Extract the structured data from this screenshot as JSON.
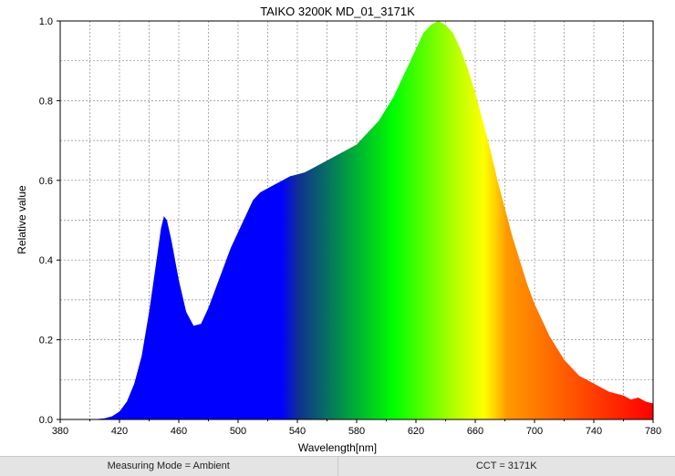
{
  "chart_data": {
    "type": "area",
    "title": "TAIKO 3200K MD_01_3171K",
    "xlabel": "Wavelength[nm]",
    "ylabel": "Relative value",
    "xlim": [
      380,
      780
    ],
    "ylim": [
      0,
      1.0
    ],
    "x_ticks": [
      380,
      420,
      460,
      500,
      540,
      580,
      620,
      660,
      700,
      740,
      780
    ],
    "y_ticks": [
      "0.0",
      "0.2",
      "0.4",
      "0.6",
      "0.8",
      "1.0"
    ],
    "x_minor_step": 20,
    "y_minor_step": 0.1,
    "grid": true,
    "fill": "visible-spectrum-gradient",
    "series": [
      {
        "x": [
          400,
          405,
          410,
          415,
          420,
          425,
          430,
          435,
          440,
          445,
          448,
          450,
          452,
          455,
          460,
          465,
          470,
          475,
          480,
          485,
          490,
          495,
          500,
          505,
          510,
          515,
          520,
          525,
          530,
          535,
          540,
          545,
          550,
          555,
          560,
          565,
          570,
          575,
          580,
          585,
          590,
          595,
          600,
          605,
          610,
          615,
          620,
          625,
          630,
          635,
          640,
          645,
          650,
          655,
          660,
          665,
          670,
          675,
          680,
          685,
          690,
          695,
          700,
          705,
          710,
          715,
          720,
          725,
          730,
          735,
          740,
          745,
          750,
          755,
          760,
          765,
          770,
          775,
          780
        ],
        "y": [
          0.0,
          0.001,
          0.003,
          0.008,
          0.02,
          0.045,
          0.09,
          0.16,
          0.27,
          0.4,
          0.48,
          0.51,
          0.5,
          0.45,
          0.35,
          0.27,
          0.235,
          0.24,
          0.28,
          0.33,
          0.38,
          0.43,
          0.47,
          0.51,
          0.55,
          0.57,
          0.58,
          0.59,
          0.6,
          0.61,
          0.615,
          0.62,
          0.63,
          0.64,
          0.65,
          0.66,
          0.67,
          0.68,
          0.69,
          0.71,
          0.73,
          0.75,
          0.78,
          0.81,
          0.85,
          0.89,
          0.93,
          0.97,
          0.99,
          1.0,
          0.99,
          0.97,
          0.93,
          0.88,
          0.82,
          0.75,
          0.68,
          0.6,
          0.53,
          0.46,
          0.4,
          0.34,
          0.29,
          0.25,
          0.21,
          0.18,
          0.15,
          0.13,
          0.11,
          0.1,
          0.09,
          0.08,
          0.07,
          0.065,
          0.06,
          0.05,
          0.055,
          0.045,
          0.04
        ]
      }
    ]
  },
  "status_bar": {
    "measuring_mode": "Measuring Mode = Ambient",
    "cct": "CCT = 3171K"
  }
}
